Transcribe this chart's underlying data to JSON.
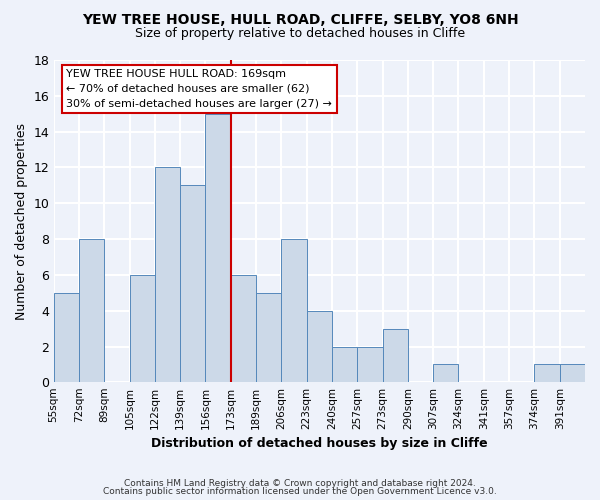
{
  "title": "YEW TREE HOUSE, HULL ROAD, CLIFFE, SELBY, YO8 6NH",
  "subtitle": "Size of property relative to detached houses in Cliffe",
  "xlabel": "Distribution of detached houses by size in Cliffe",
  "ylabel": "Number of detached properties",
  "footer_line1": "Contains HM Land Registry data © Crown copyright and database right 2024.",
  "footer_line2": "Contains public sector information licensed under the Open Government Licence v3.0.",
  "bin_labels": [
    "55sqm",
    "72sqm",
    "89sqm",
    "105sqm",
    "122sqm",
    "139sqm",
    "156sqm",
    "173sqm",
    "189sqm",
    "206sqm",
    "223sqm",
    "240sqm",
    "257sqm",
    "273sqm",
    "290sqm",
    "307sqm",
    "324sqm",
    "341sqm",
    "357sqm",
    "374sqm",
    "391sqm"
  ],
  "bar_heights": [
    5,
    8,
    0,
    6,
    12,
    11,
    15,
    6,
    5,
    8,
    4,
    2,
    2,
    3,
    0,
    1,
    0,
    0,
    0,
    1,
    1
  ],
  "bar_color": "#ccd9e8",
  "bar_edge_color": "#5588bb",
  "background_color": "#eef2fa",
  "grid_color": "#ffffff",
  "annotation_box_color": "#ffffff",
  "annotation_border_color": "#cc0000",
  "vline_color": "#cc0000",
  "annotation_title": "YEW TREE HOUSE HULL ROAD: 169sqm",
  "annotation_line2": "← 70% of detached houses are smaller (62)",
  "annotation_line3": "30% of semi-detached houses are larger (27) →",
  "ylim": [
    0,
    18
  ],
  "yticks": [
    0,
    2,
    4,
    6,
    8,
    10,
    12,
    14,
    16,
    18
  ]
}
